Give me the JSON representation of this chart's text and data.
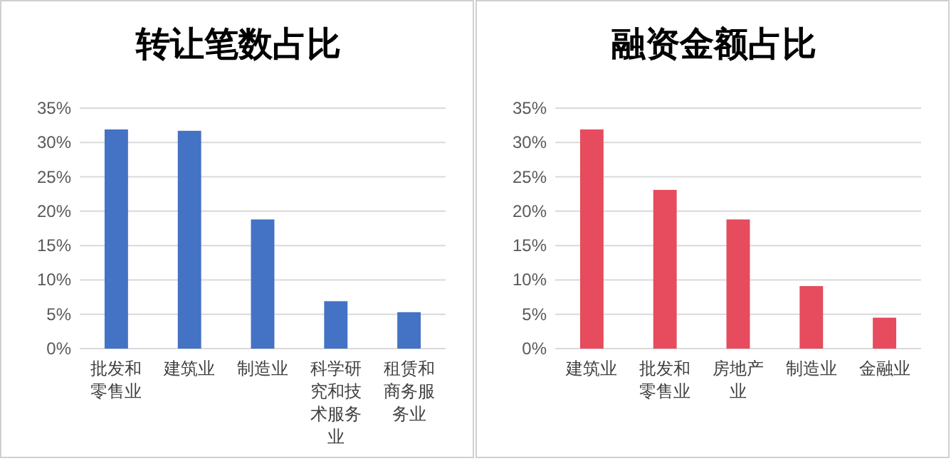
{
  "chart_data": [
    {
      "type": "bar",
      "title": "转让笔数占比",
      "categories": [
        "批发和零售业",
        "建筑业",
        "制造业",
        "科学研究和技术服务业",
        "租赁和商务服务业"
      ],
      "values": [
        31.9,
        31.7,
        18.8,
        6.9,
        5.3
      ],
      "color": "#4472c4",
      "ylim": [
        0,
        35
      ],
      "yticks": [
        {
          "value": 0,
          "label": "0%"
        },
        {
          "value": 5,
          "label": "5%"
        },
        {
          "value": 10,
          "label": "10%"
        },
        {
          "value": 15,
          "label": "15%"
        },
        {
          "value": 20,
          "label": "20%"
        },
        {
          "value": 25,
          "label": "25%"
        },
        {
          "value": 30,
          "label": "30%"
        },
        {
          "value": 35,
          "label": "35%"
        }
      ],
      "grid": "y"
    },
    {
      "type": "bar",
      "title": "融资金额占比",
      "categories": [
        "建筑业",
        "批发和零售业",
        "房地产业",
        "制造业",
        "金融业"
      ],
      "values": [
        31.9,
        23.1,
        18.8,
        9.1,
        4.5
      ],
      "color": "#e64b5e",
      "ylim": [
        0,
        35
      ],
      "yticks": [
        {
          "value": 0,
          "label": "0%"
        },
        {
          "value": 5,
          "label": "5%"
        },
        {
          "value": 10,
          "label": "10%"
        },
        {
          "value": 15,
          "label": "15%"
        },
        {
          "value": 20,
          "label": "20%"
        },
        {
          "value": 25,
          "label": "25%"
        },
        {
          "value": 30,
          "label": "30%"
        },
        {
          "value": 35,
          "label": "35%"
        }
      ],
      "grid": "y"
    }
  ]
}
